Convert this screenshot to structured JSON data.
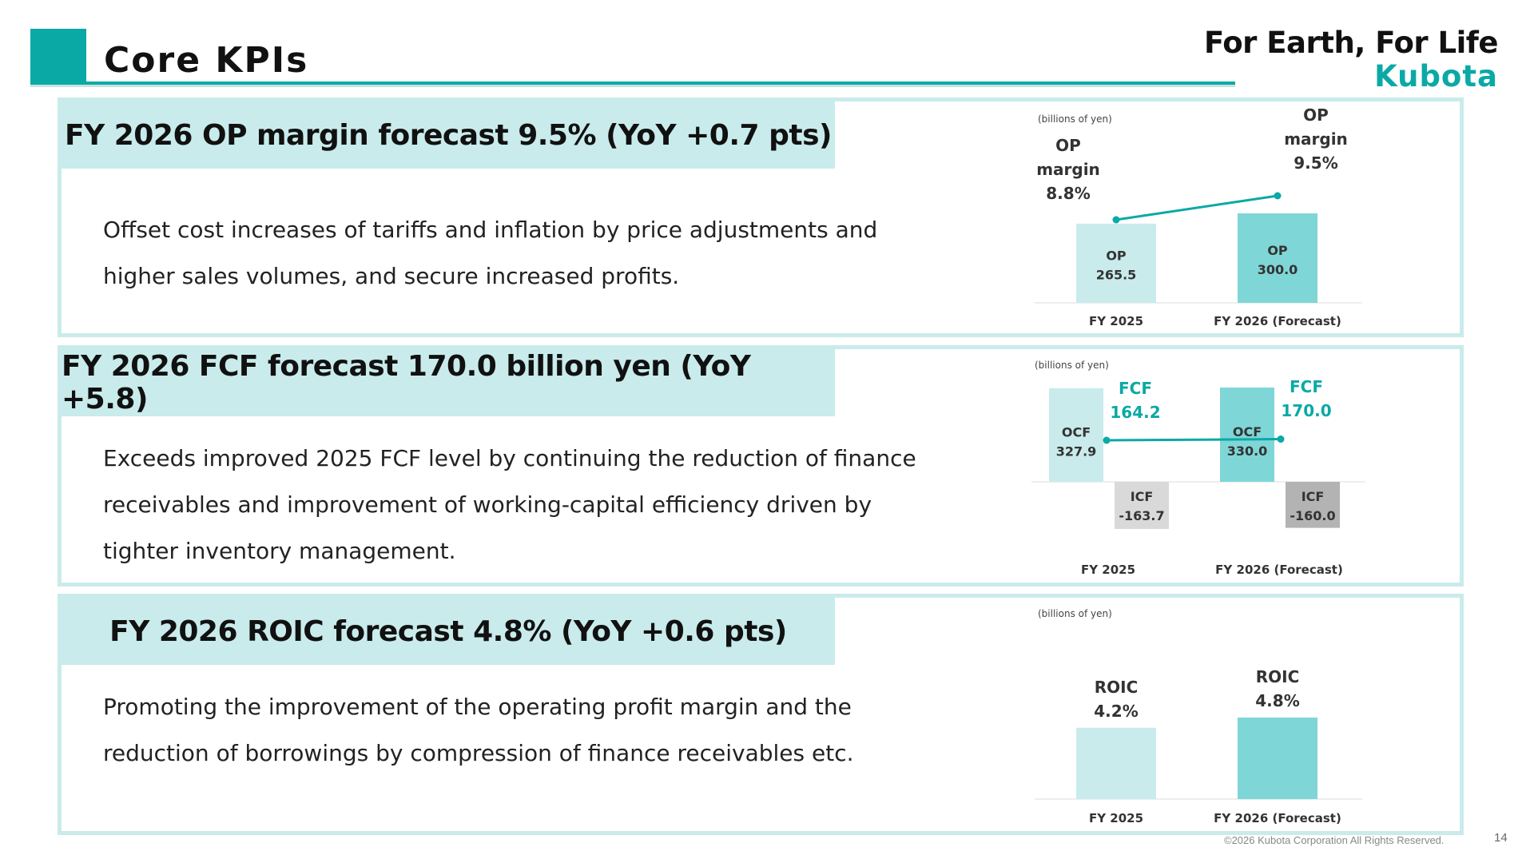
{
  "header": {
    "title": "Core KPIs",
    "tagline": "For Earth, For Life",
    "logo": "Kubota"
  },
  "kpis": [
    {
      "heading": "FY 2026 OP margin forecast 9.5% (YoY +0.7 pts)",
      "body": [
        "Offset cost increases of tariffs and inflation by price adjustments and",
        "higher sales volumes, and secure increased profits."
      ]
    },
    {
      "heading": "FY 2026 FCF forecast 170.0 billion yen (YoY +5.8)",
      "body": [
        "Exceeds improved 2025 FCF level by continuing the reduction of finance",
        "receivables and improvement of working-capital efficiency driven by",
        "tighter inventory management."
      ]
    },
    {
      "heading": "FY 2026 ROIC forecast 4.8% (YoY +0.6 pts)",
      "body": [
        "Promoting the improvement of the operating profit margin and the",
        "reduction of borrowings by compression of finance receivables etc."
      ]
    }
  ],
  "chart_data": [
    {
      "type": "bar",
      "unit_label": "(billions of yen)",
      "categories": [
        "FY 2025",
        "FY 2026 (Forecast)"
      ],
      "series": [
        {
          "name": "OP",
          "values": [
            265.5,
            300.0
          ],
          "labels": [
            "OP\n265.5",
            "OP\n300.0"
          ],
          "colors": [
            "#c9ebeb",
            "#7fd6d6"
          ]
        },
        {
          "name": "OP margin",
          "type": "line",
          "values": [
            8.8,
            9.5
          ],
          "labels": [
            "OP\nmargin\n8.8%",
            "OP\nmargin\n9.5%"
          ],
          "color": "#0aa9a6"
        }
      ]
    },
    {
      "type": "bar",
      "unit_label": "(billions of yen)",
      "categories": [
        "FY 2025",
        "FY 2026 (Forecast)"
      ],
      "series": [
        {
          "name": "OCF",
          "values": [
            327.9,
            330.0
          ],
          "labels": [
            "OCF\n327.9",
            "OCF\n330.0"
          ],
          "colors": [
            "#c9ebeb",
            "#7fd6d6"
          ]
        },
        {
          "name": "ICF",
          "values": [
            -163.7,
            -160.0
          ],
          "labels": [
            "ICF\n-163.7",
            "ICF\n-160.0"
          ],
          "colors": [
            "#d9d9d9",
            "#b3b3b3"
          ]
        },
        {
          "name": "FCF",
          "type": "line",
          "values": [
            164.2,
            170.0
          ],
          "labels": [
            "FCF\n164.2",
            "FCF\n170.0"
          ],
          "color": "#0aa9a6"
        }
      ]
    },
    {
      "type": "bar",
      "unit_label": "(billions of yen)",
      "categories": [
        "FY 2025",
        "FY 2026 (Forecast)"
      ],
      "series": [
        {
          "name": "ROIC",
          "values": [
            4.2,
            4.8
          ],
          "labels": [
            "ROIC\n4.2%",
            "ROIC\n4.8%"
          ],
          "colors": [
            "#c9ebeb",
            "#7fd6d6"
          ]
        }
      ]
    }
  ],
  "footer": {
    "copyright": "©2026 Kubota Corporation All Rights Reserved.",
    "page": "14"
  },
  "colors": {
    "accent": "#0aa9a6",
    "panel_bg": "#c9ebeb",
    "bar_light": "#c9ebeb",
    "bar_dark": "#7fd6d6",
    "icf_light": "#d9d9d9",
    "icf_dark": "#b3b3b3"
  }
}
